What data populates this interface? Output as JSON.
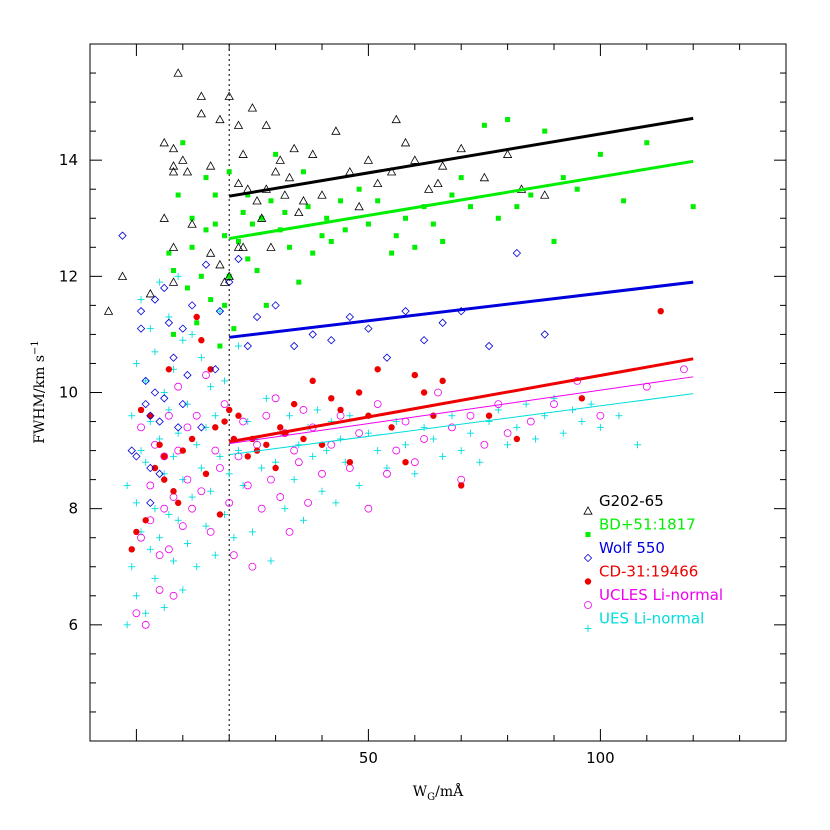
{
  "chart_data": {
    "type": "scatter",
    "title": "",
    "xlabel": "W_G/mÅ",
    "ylabel": "FWHM/km s^-1",
    "xlim": [
      -10,
      140
    ],
    "ylim": [
      4,
      16
    ],
    "xticks_labeled": [
      50,
      100
    ],
    "yticks_labeled": [
      6,
      8,
      10,
      12,
      14
    ],
    "vline_x": 20,
    "legend_position": "right-lower",
    "series": [
      {
        "name": "G202-65",
        "color": "#000000",
        "marker": "triangle-open",
        "fit": [
          [
            20,
            13.38
          ],
          [
            120,
            14.72
          ]
        ],
        "x": [
          -6,
          -3,
          3,
          6,
          6,
          8,
          8,
          8,
          8,
          8,
          9,
          10,
          11,
          12,
          14,
          14,
          16,
          16,
          18,
          18,
          19,
          20,
          20,
          22,
          22,
          22,
          23,
          23,
          24,
          25,
          26,
          27,
          28,
          28,
          29,
          30,
          31,
          32,
          33,
          34,
          35,
          36,
          38,
          40,
          43,
          46,
          48,
          50,
          52,
          55,
          56,
          58,
          60,
          63,
          65,
          66,
          70,
          75,
          80,
          83,
          88
        ],
        "y": [
          11.4,
          12.0,
          11.7,
          13.0,
          14.3,
          14.2,
          13.8,
          13.9,
          12.5,
          11.9,
          15.5,
          14.0,
          13.8,
          12.9,
          15.1,
          14.8,
          13.9,
          12.4,
          14.7,
          12.2,
          11.9,
          15.1,
          12.0,
          14.6,
          13.6,
          12.5,
          14.1,
          12.5,
          13.5,
          14.9,
          13.3,
          13.0,
          14.6,
          13.5,
          12.5,
          13.8,
          14.0,
          13.4,
          13.7,
          14.2,
          13.1,
          13.3,
          14.1,
          13.4,
          14.5,
          13.8,
          13.2,
          14.0,
          13.6,
          13.8,
          14.7,
          14.3,
          14.0,
          13.5,
          13.6,
          13.9,
          14.2,
          13.7,
          14.1,
          13.5,
          13.4
        ]
      },
      {
        "name": "BD+51:1817",
        "color": "#00ee00",
        "marker": "square-filled",
        "fit": [
          [
            20,
            12.65
          ],
          [
            120,
            13.98
          ]
        ],
        "x": [
          7,
          8,
          8,
          9,
          10,
          11,
          12,
          12,
          13,
          14,
          15,
          15,
          16,
          17,
          17,
          18,
          19,
          19,
          20,
          20,
          21,
          22,
          23,
          24,
          24,
          25,
          26,
          27,
          28,
          29,
          30,
          31,
          32,
          33,
          35,
          36,
          37,
          38,
          40,
          41,
          42,
          44,
          45,
          48,
          50,
          52,
          55,
          56,
          58,
          60,
          62,
          64,
          66,
          68,
          70,
          72,
          75,
          78,
          80,
          82,
          85,
          88,
          90,
          92,
          95,
          100,
          105,
          110,
          120
        ],
        "y": [
          12.4,
          12.1,
          11.0,
          13.4,
          14.3,
          11.8,
          12.5,
          13.0,
          11.2,
          12.0,
          13.7,
          12.8,
          11.6,
          13.4,
          12.9,
          10.8,
          11.5,
          12.7,
          13.8,
          12.0,
          11.1,
          12.6,
          13.1,
          12.3,
          13.4,
          12.9,
          12.1,
          13.0,
          11.5,
          13.3,
          14.1,
          12.8,
          13.1,
          12.5,
          11.9,
          13.8,
          13.2,
          12.4,
          12.7,
          13.0,
          12.6,
          13.3,
          12.8,
          13.5,
          12.9,
          13.3,
          12.4,
          12.7,
          13.0,
          12.5,
          13.2,
          12.9,
          12.6,
          13.4,
          13.7,
          13.2,
          14.6,
          13.0,
          14.7,
          13.2,
          13.4,
          14.5,
          12.6,
          13.7,
          13.5,
          14.1,
          13.3,
          14.3,
          13.2
        ]
      },
      {
        "name": "Wolf 550",
        "color": "#0000dd",
        "marker": "diamond-open",
        "fit": [
          [
            20,
            10.95
          ],
          [
            120,
            11.9
          ]
        ],
        "x": [
          -3,
          -1,
          0,
          1,
          1,
          2,
          2,
          3,
          3,
          3,
          4,
          4,
          5,
          5,
          6,
          6,
          7,
          8,
          9,
          10,
          10,
          11,
          12,
          14,
          15,
          17,
          18,
          20,
          22,
          24,
          26,
          30,
          34,
          38,
          42,
          46,
          50,
          54,
          58,
          62,
          66,
          70,
          76,
          82,
          88
        ],
        "y": [
          12.7,
          9.0,
          8.9,
          11.1,
          11.4,
          10.2,
          9.8,
          9.6,
          8.7,
          8.1,
          11.6,
          10.0,
          9.5,
          8.6,
          11.8,
          9.9,
          11.2,
          10.6,
          9.4,
          11.1,
          9.8,
          10.3,
          11.5,
          9.4,
          12.2,
          10.4,
          11.4,
          11.9,
          12.3,
          10.8,
          11.3,
          11.5,
          10.8,
          11.0,
          10.9,
          11.3,
          11.1,
          10.6,
          11.4,
          10.9,
          11.2,
          11.4,
          10.8,
          12.4,
          11.0
        ]
      },
      {
        "name": "CD-31:19466",
        "color": "#ee0000",
        "marker": "circle-filled",
        "fit": [
          [
            20,
            9.15
          ],
          [
            120,
            10.58
          ]
        ],
        "x": [
          -1,
          0,
          1,
          2,
          3,
          4,
          5,
          6,
          6,
          7,
          8,
          9,
          10,
          12,
          13,
          14,
          15,
          16,
          17,
          18,
          19,
          20,
          21,
          22,
          24,
          25,
          26,
          28,
          30,
          31,
          32,
          34,
          36,
          38,
          40,
          42,
          44,
          46,
          48,
          50,
          52,
          55,
          58,
          60,
          62,
          64,
          66,
          70,
          76,
          82,
          96,
          113
        ],
        "y": [
          7.3,
          7.6,
          9.7,
          7.8,
          9.6,
          8.7,
          9.1,
          8.9,
          8.5,
          10.4,
          8.3,
          8.1,
          9.0,
          9.2,
          11.3,
          10.9,
          8.6,
          10.4,
          9.4,
          7.9,
          9.5,
          9.7,
          9.2,
          9.6,
          8.9,
          9.2,
          9.0,
          9.1,
          8.7,
          9.4,
          9.3,
          9.8,
          9.2,
          10.2,
          9.1,
          9.9,
          9.7,
          8.8,
          10.0,
          9.6,
          10.4,
          9.4,
          8.8,
          10.3,
          10.0,
          9.6,
          10.2,
          8.4,
          9.6,
          9.2,
          9.9,
          11.4
        ]
      },
      {
        "name": "UCLES Li-normal",
        "color": "#ee00ee",
        "marker": "circle-open",
        "fit": [
          [
            20,
            9.12
          ],
          [
            120,
            10.27
          ]
        ],
        "x": [
          0,
          1,
          1,
          2,
          3,
          3,
          4,
          5,
          5,
          6,
          6,
          7,
          7,
          8,
          8,
          9,
          9,
          10,
          11,
          11,
          12,
          13,
          14,
          15,
          16,
          17,
          18,
          19,
          20,
          21,
          22,
          23,
          24,
          25,
          26,
          27,
          28,
          29,
          30,
          31,
          32,
          33,
          34,
          35,
          36,
          37,
          38,
          40,
          42,
          44,
          46,
          48,
          50,
          52,
          54,
          56,
          58,
          60,
          62,
          65,
          68,
          70,
          72,
          75,
          78,
          80,
          85,
          90,
          95,
          100,
          110,
          118
        ],
        "y": [
          6.2,
          7.5,
          9.4,
          6.0,
          7.8,
          8.4,
          9.1,
          6.6,
          7.2,
          8.0,
          8.9,
          7.3,
          9.6,
          6.5,
          8.2,
          9.0,
          10.1,
          7.7,
          8.5,
          9.4,
          8.0,
          9.6,
          8.3,
          10.3,
          7.6,
          9.0,
          8.7,
          9.8,
          8.1,
          7.2,
          8.9,
          9.5,
          8.4,
          7.0,
          9.1,
          8.0,
          9.6,
          8.5,
          9.9,
          8.2,
          9.3,
          7.6,
          9.0,
          8.8,
          9.7,
          8.1,
          9.4,
          8.6,
          9.1,
          9.6,
          8.7,
          9.3,
          8.0,
          9.8,
          8.6,
          9.0,
          9.5,
          8.8,
          9.2,
          10.0,
          9.4,
          8.5,
          9.6,
          9.1,
          9.8,
          9.3,
          9.5,
          9.8,
          10.2,
          9.6,
          10.1,
          10.4
        ]
      },
      {
        "name": "UES Li-normal",
        "color": "#00dddd",
        "marker": "plus",
        "fit": [
          [
            20,
            8.93
          ],
          [
            120,
            9.98
          ]
        ],
        "x": [
          -2,
          -2,
          -1,
          -1,
          0,
          0,
          0,
          1,
          1,
          1,
          2,
          2,
          2,
          3,
          3,
          3,
          4,
          4,
          4,
          5,
          5,
          5,
          6,
          6,
          6,
          7,
          7,
          7,
          8,
          8,
          8,
          9,
          9,
          9,
          10,
          10,
          10,
          11,
          11,
          12,
          12,
          13,
          13,
          14,
          14,
          15,
          15,
          16,
          16,
          17,
          17,
          18,
          18,
          19,
          19,
          20,
          20,
          21,
          22,
          22,
          23,
          24,
          25,
          26,
          27,
          28,
          29,
          30,
          31,
          32,
          33,
          34,
          35,
          36,
          37,
          38,
          39,
          40,
          41,
          42,
          43,
          44,
          45,
          46,
          48,
          50,
          52,
          54,
          56,
          58,
          60,
          62,
          64,
          66,
          68,
          70,
          72,
          74,
          76,
          78,
          80,
          82,
          84,
          86,
          88,
          90,
          92,
          94,
          96,
          98,
          100,
          104,
          108
        ],
        "y": [
          6.0,
          8.4,
          7.0,
          9.6,
          6.5,
          8.1,
          10.5,
          7.6,
          9.0,
          11.6,
          6.2,
          8.8,
          10.2,
          7.3,
          9.5,
          11.1,
          6.8,
          8.0,
          10.7,
          7.5,
          9.2,
          11.9,
          6.3,
          8.6,
          10.0,
          7.9,
          9.7,
          11.3,
          7.1,
          8.9,
          10.4,
          7.8,
          9.3,
          12.0,
          6.6,
          8.5,
          10.9,
          7.4,
          9.8,
          8.2,
          11.0,
          7.0,
          9.1,
          8.7,
          10.6,
          7.7,
          9.4,
          8.3,
          10.1,
          7.2,
          9.6,
          8.9,
          11.4,
          7.9,
          10.2,
          8.6,
          9.7,
          7.5,
          9.0,
          10.8,
          8.4,
          9.5,
          7.6,
          9.2,
          8.7,
          9.9,
          7.1,
          8.8,
          9.3,
          8.0,
          9.6,
          8.5,
          9.1,
          7.8,
          9.4,
          8.9,
          9.7,
          8.3,
          9.0,
          9.5,
          8.1,
          9.2,
          8.8,
          9.6,
          8.4,
          9.3,
          9.0,
          8.7,
          9.5,
          9.1,
          8.6,
          9.4,
          9.2,
          8.9,
          9.6,
          9.0,
          9.3,
          8.8,
          9.5,
          9.7,
          9.1,
          9.4,
          9.8,
          9.2,
          9.6,
          9.9,
          9.3,
          9.7,
          9.5,
          9.8,
          9.4,
          9.6,
          9.1
        ]
      }
    ]
  }
}
